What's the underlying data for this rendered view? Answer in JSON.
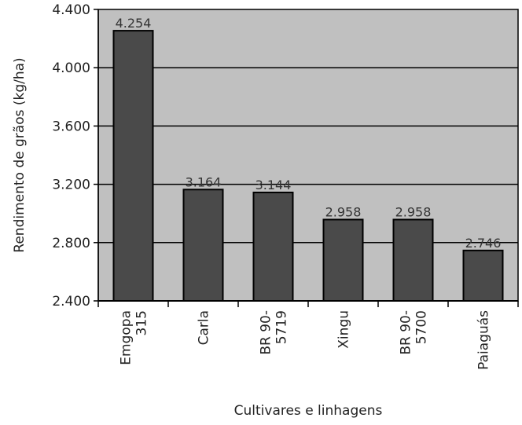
{
  "chart_data": {
    "type": "bar",
    "categories": [
      [
        "Emgopa",
        "315"
      ],
      [
        "Carla"
      ],
      [
        "BR 90-",
        "5719"
      ],
      [
        "Xingu"
      ],
      [
        "BR 90-",
        "5700"
      ],
      [
        "Paiaguás"
      ]
    ],
    "values": [
      4254,
      3164,
      3144,
      2958,
      2958,
      2746
    ],
    "value_labels": [
      "4.254",
      "3.164",
      "3.144",
      "2.958",
      "2.958",
      "2.746"
    ],
    "ylim": [
      2400,
      4400
    ],
    "yticks": [
      2400,
      2800,
      3200,
      3600,
      4000,
      4400
    ],
    "ytick_labels": [
      "2.400",
      "2.800",
      "3.200",
      "3.600",
      "4.000",
      "4.400"
    ],
    "xlabel": "Cultivares e linhagens",
    "ylabel": "Rendimento de grãos (kg/ha)",
    "grid": true,
    "colors": {
      "plot_background": "#c0c0c0",
      "bar_fill": "#4a4a4a",
      "bar_stroke": "#000000",
      "gridline": "#000000"
    }
  }
}
